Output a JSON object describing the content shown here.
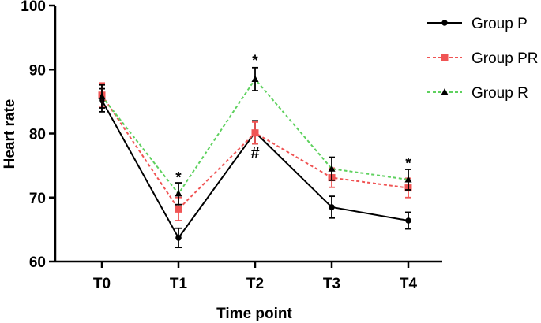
{
  "chart_data": {
    "type": "line",
    "title": "",
    "xlabel": "Time point",
    "ylabel": "Heart rate",
    "categories": [
      "T0",
      "T1",
      "T2",
      "T3",
      "T4"
    ],
    "ylim": [
      60,
      100
    ],
    "yticks": [
      60,
      70,
      80,
      90,
      100
    ],
    "grid": false,
    "legend_position": "top-right",
    "series": [
      {
        "name": "Group P",
        "color": "#000000",
        "dash": "solid",
        "marker": "circle",
        "values": [
          85.2,
          63.7,
          80.2,
          68.5,
          66.4
        ],
        "errors": [
          1.8,
          1.5,
          1.8,
          1.7,
          1.3
        ]
      },
      {
        "name": "Group PR",
        "color": "#f05454",
        "dash": "dotted",
        "marker": "square",
        "values": [
          86.0,
          68.2,
          80.1,
          73.1,
          71.5
        ],
        "errors": [
          1.9,
          1.8,
          1.7,
          1.5,
          1.5
        ]
      },
      {
        "name": "Group R",
        "color": "#5ed15e",
        "dash": "dotted",
        "marker": "triangle",
        "values": [
          85.8,
          70.6,
          88.5,
          74.5,
          72.8
        ],
        "errors": [
          1.8,
          1.7,
          1.8,
          1.8,
          1.6
        ]
      }
    ],
    "annotations": [
      {
        "category": "T1",
        "value": 73.6,
        "text": "*"
      },
      {
        "category": "T2",
        "value": 91.9,
        "text": "*"
      },
      {
        "category": "T2",
        "value": 77.4,
        "text": "#"
      },
      {
        "category": "T4",
        "value": 75.8,
        "text": "*"
      }
    ]
  }
}
